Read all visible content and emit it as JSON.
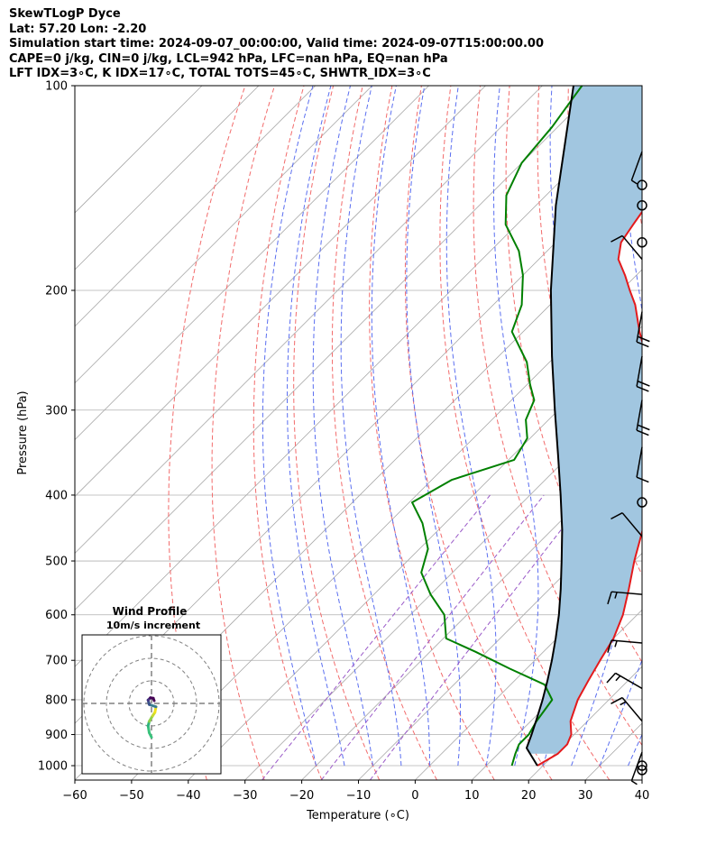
{
  "header": {
    "line1": "SkewTLogP Dyce",
    "line2": "Lat: 57.20   Lon: -2.20",
    "line3": "Simulation start time: 2024-09-07_00:00:00, Valid time: 2024-09-07T15:00:00.00",
    "line4": "CAPE=0 j/kg, CIN=0 j/kg, LCL=942 hPa, LFC=nan hPa, EQ=nan hPa",
    "line5": "LFT IDX=3∘C, K IDX=17∘C, TOTAL TOTS=45∘C, SHWTR_IDX=3∘C"
  },
  "colors": {
    "temperature": "#e41a1c",
    "dewpoint": "#008000",
    "parcel": "#000000",
    "cape_fill": "#a1c6e0",
    "dry_adiabat": "#f26b6b",
    "moist_adiabat": "#5a6ef0",
    "mixing_ratio": "#9a5ac8",
    "isotherm": "#a8a8a8"
  },
  "chart_data": {
    "type": "line",
    "xlabel": "Temperature (∘C)",
    "ylabel": "Pressure (hPa)",
    "xlim": [
      -60,
      40
    ],
    "ylim": [
      1050,
      100
    ],
    "yscale": "log",
    "skew": true,
    "grid": true,
    "xticks": [
      -60,
      -50,
      -40,
      -30,
      -20,
      -10,
      0,
      10,
      20,
      30,
      40
    ],
    "yticks": [
      100,
      200,
      300,
      400,
      500,
      600,
      700,
      800,
      900,
      1000
    ],
    "series": [
      {
        "key": "temperature",
        "points": [
          [
            1000,
            19.0
          ],
          [
            960,
            20.5
          ],
          [
            930,
            20.5
          ],
          [
            900,
            19.5
          ],
          [
            860,
            17.0
          ],
          [
            800,
            14.5
          ],
          [
            750,
            13.0
          ],
          [
            700,
            11.5
          ],
          [
            650,
            10.0
          ],
          [
            600,
            7.5
          ],
          [
            550,
            4.0
          ],
          [
            500,
            0.0
          ],
          [
            450,
            -4.0
          ],
          [
            400,
            -9.0
          ],
          [
            350,
            -15.5
          ],
          [
            300,
            -23.0
          ],
          [
            270,
            -28.5
          ],
          [
            250,
            -34.0
          ],
          [
            230,
            -39.5
          ],
          [
            210,
            -45.0
          ],
          [
            200,
            -48.5
          ],
          [
            190,
            -52.0
          ],
          [
            180,
            -56.0
          ],
          [
            170,
            -58.5
          ],
          [
            160,
            -59.5
          ],
          [
            150,
            -60.5
          ],
          [
            140,
            -62.5
          ],
          [
            130,
            -64.5
          ],
          [
            120,
            -66.5
          ],
          [
            110,
            -68.5
          ],
          [
            100,
            -69.5
          ]
        ]
      },
      {
        "key": "dewpoint",
        "points": [
          [
            1000,
            14.5
          ],
          [
            960,
            13.0
          ],
          [
            930,
            12.0
          ],
          [
            900,
            12.0
          ],
          [
            860,
            11.0
          ],
          [
            800,
            10.0
          ],
          [
            760,
            6.0
          ],
          [
            720,
            -3.0
          ],
          [
            680,
            -12.0
          ],
          [
            650,
            -19.5
          ],
          [
            600,
            -24.0
          ],
          [
            560,
            -30.0
          ],
          [
            520,
            -35.5
          ],
          [
            480,
            -38.5
          ],
          [
            440,
            -44.0
          ],
          [
            410,
            -49.5
          ],
          [
            380,
            -46.5
          ],
          [
            355,
            -39.0
          ],
          [
            330,
            -40.5
          ],
          [
            310,
            -44.0
          ],
          [
            290,
            -46.0
          ],
          [
            275,
            -49.5
          ],
          [
            255,
            -54.0
          ],
          [
            230,
            -62.0
          ],
          [
            210,
            -65.0
          ],
          [
            190,
            -70.0
          ],
          [
            175,
            -75.0
          ],
          [
            160,
            -82.0
          ],
          [
            145,
            -87.0
          ],
          [
            130,
            -90.0
          ],
          [
            115,
            -91.0
          ],
          [
            100,
            -93.0
          ]
        ]
      },
      {
        "key": "parcel",
        "points": [
          [
            1000,
            19.0
          ],
          [
            942,
            14.0
          ],
          [
            900,
            12.5
          ],
          [
            850,
            10.5
          ],
          [
            800,
            8.3
          ],
          [
            750,
            5.8
          ],
          [
            700,
            3.0
          ],
          [
            650,
            -0.2
          ],
          [
            600,
            -3.8
          ],
          [
            550,
            -8.0
          ],
          [
            500,
            -12.8
          ],
          [
            450,
            -18.2
          ],
          [
            400,
            -24.6
          ],
          [
            350,
            -32.0
          ],
          [
            300,
            -40.6
          ],
          [
            250,
            -50.6
          ],
          [
            200,
            -62.4
          ],
          [
            150,
            -76.5
          ],
          [
            100,
            -94.5
          ]
        ]
      }
    ],
    "wind_barbs": [
      {
        "pressure": 1015,
        "kind": "calm"
      },
      {
        "pressure": 1000,
        "kind": "calm"
      },
      {
        "pressure": 955,
        "kind": "barb",
        "dir": 200,
        "speed": 5
      },
      {
        "pressure": 860,
        "kind": "barb",
        "dir": 320,
        "speed": 15
      },
      {
        "pressure": 770,
        "kind": "barb",
        "dir": 300,
        "speed": 15
      },
      {
        "pressure": 660,
        "kind": "barb",
        "dir": 275,
        "speed": 15
      },
      {
        "pressure": 560,
        "kind": "barb",
        "dir": 275,
        "speed": 15
      },
      {
        "pressure": 460,
        "kind": "barb",
        "dir": 320,
        "speed": 10
      },
      {
        "pressure": 410,
        "kind": "calm"
      },
      {
        "pressure": 340,
        "kind": "barb",
        "dir": 190,
        "speed": 10
      },
      {
        "pressure": 290,
        "kind": "barb",
        "dir": 190,
        "speed": 20
      },
      {
        "pressure": 250,
        "kind": "barb",
        "dir": 190,
        "speed": 20
      },
      {
        "pressure": 215,
        "kind": "barb",
        "dir": 190,
        "speed": 20
      },
      {
        "pressure": 180,
        "kind": "barb",
        "dir": 320,
        "speed": 10
      },
      {
        "pressure": 170,
        "kind": "calm"
      },
      {
        "pressure": 150,
        "kind": "calm"
      },
      {
        "pressure": 140,
        "kind": "calm"
      },
      {
        "pressure": 125,
        "kind": "barb",
        "dir": 200,
        "speed": 5
      }
    ],
    "hodograph": {
      "title": "Wind Profile",
      "subtitle": "10m/s increment",
      "ring_step": 10,
      "ring_count": 3,
      "points": [
        [
          0,
          -15
        ],
        [
          -1,
          -13
        ],
        [
          -1.5,
          -10
        ],
        [
          -1,
          -8
        ],
        [
          0.5,
          -5.5
        ],
        [
          1.5,
          -4
        ],
        [
          2,
          -1.5
        ],
        [
          -1,
          -0.5
        ],
        [
          -1.5,
          1.5
        ],
        [
          -0.5,
          2.5
        ],
        [
          0.8,
          2.3
        ],
        [
          1.2,
          1.2
        ]
      ]
    }
  }
}
